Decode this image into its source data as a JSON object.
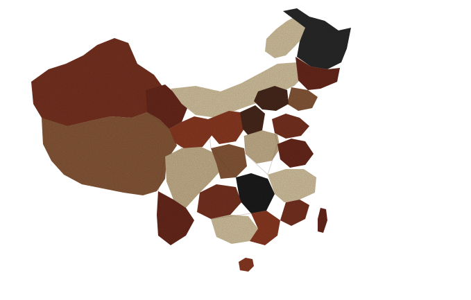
{
  "image": {
    "background": "#ffffff",
    "texture": "grain-mosaic",
    "palette": {
      "dark_red_brown": "#6b2a1e",
      "red_brown": "#7a3422",
      "mid_brown": "#8a5a3a",
      "rust": "#8e3b24",
      "tan": "#c9b48f",
      "light_tan": "#d8c7a3",
      "dark_brown": "#4a2a1e",
      "near_black": "#2b2b2b",
      "black": "#1e1e1e"
    }
  }
}
